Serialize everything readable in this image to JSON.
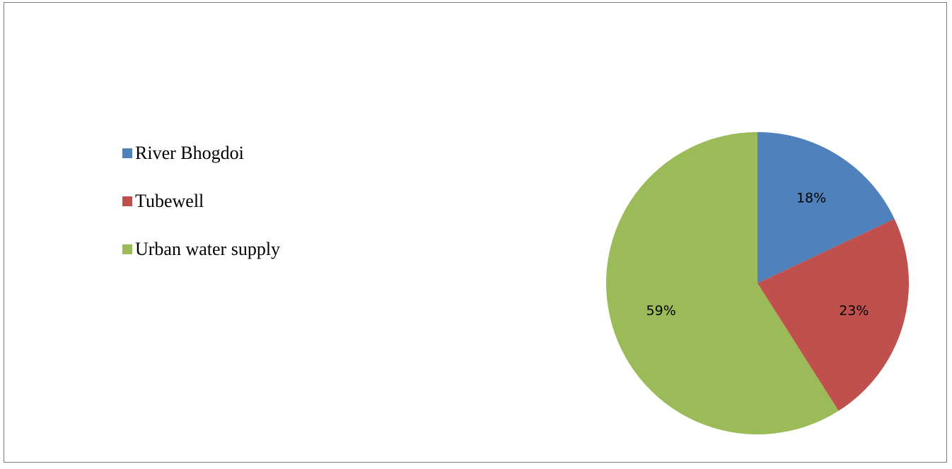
{
  "chart_data": {
    "type": "pie",
    "title": "",
    "slices": [
      {
        "label": "River Bhogdoi",
        "value": 18,
        "display": "18%",
        "color": "#4f81bd"
      },
      {
        "label": "Tubewell",
        "value": 23,
        "display": "23%",
        "color": "#c0504d"
      },
      {
        "label": "Urban water supply",
        "value": 59,
        "display": "59%",
        "color": "#9bbb59"
      }
    ],
    "start_angle": "12 o'clock",
    "direction": "clockwise",
    "legend_position": "left"
  }
}
